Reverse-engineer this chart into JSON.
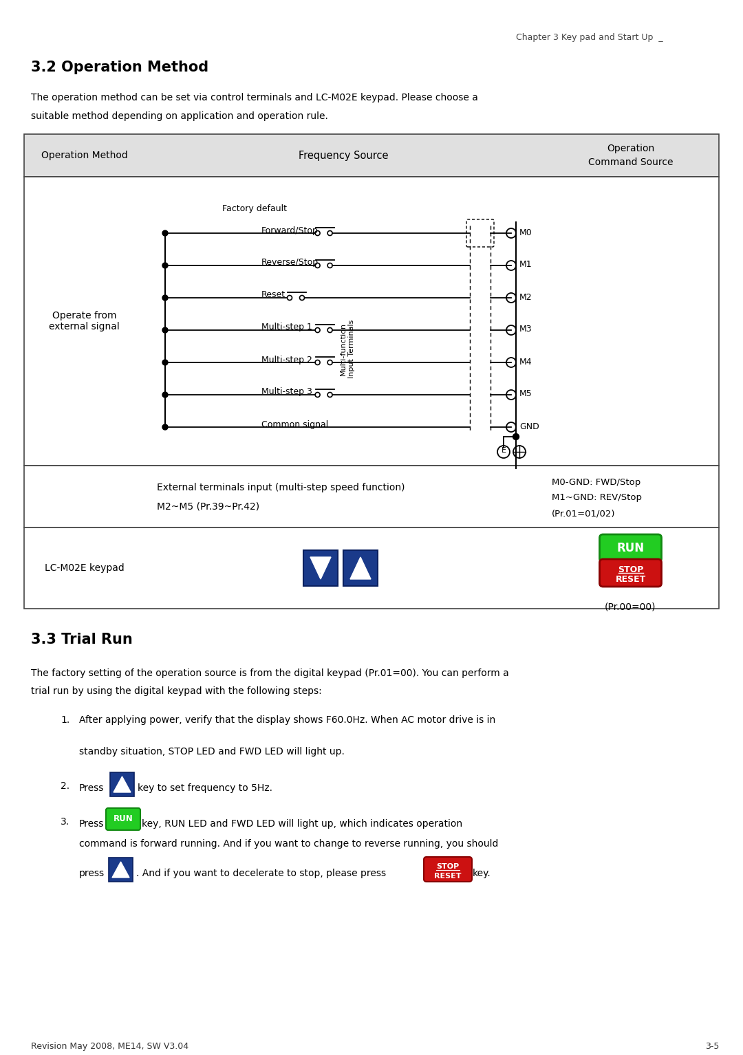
{
  "page_header": "Chapter 3 Key pad and Start Up  _",
  "section_32_title": "3.2 Operation Method",
  "section_32_body1": "The operation method can be set via control terminals and LC-M02E keypad. Please choose a",
  "section_32_body2": "suitable method depending on application and operation rule.",
  "table_header_col1": "Operation Method",
  "table_header_col2": "Frequency Source",
  "table_header_col3": "Operation\nCommand Source",
  "row1_col1": "Operate from\nexternal signal",
  "factory_default_label": "Factory default",
  "signal_labels": [
    "Forward/Stop",
    "Reverse/Stop",
    "Reset",
    "Multi-step 1",
    "Multi-step 2",
    "Multi-step 3",
    "Common signal"
  ],
  "terminal_labels": [
    "M0",
    "M1",
    "M2",
    "M3",
    "M4",
    "M5",
    "GND"
  ],
  "vertical_label": "Multi-function\nInput Terminals",
  "row2_col2_line1": "External terminals input (multi-step speed function)",
  "row2_col2_line2": "M2~M5 (Pr.39~Pr.42)",
  "row2_col3_line1": "M0-GND: FWD/Stop",
  "row2_col3_line2": "M1~GND: REV/Stop",
  "row2_col3_line3": "(Pr.01=01/02)",
  "row3_col1": "LC-M02E keypad",
  "row3_col3_bottom": "(Pr.00=00)",
  "section_33_title": "3.3 Trial Run",
  "section_33_body1": "The factory setting of the operation source is from the digital keypad (Pr.01=00). You can perform a",
  "section_33_body2": "trial run by using the digital keypad with the following steps:",
  "step1a": "After applying power, verify that the display shows F60.0Hz. When AC motor drive is in",
  "step1b": "standby situation, STOP LED and FWD LED will light up.",
  "step2a": "Press",
  "step2b": "key to set frequency to 5Hz.",
  "step3a": "Press",
  "step3b": "key, RUN LED and FWD LED will light up, which indicates operation",
  "step3c": "command is forward running. And if you want to change to reverse running, you should",
  "step3d": "press",
  "step3e": ". And if you want to decelerate to stop, please press",
  "step3f": "key.",
  "footer": "Revision May 2008, ME14, SW V3.04",
  "footer_right": "3-5",
  "bg_color": "#ffffff",
  "table_header_bg": "#e0e0e0",
  "table_border_color": "#444444",
  "blue_btn_color": "#1a3a8a",
  "run_btn_color": "#22cc22",
  "stop_btn_color": "#cc1111",
  "text_color": "#000000"
}
